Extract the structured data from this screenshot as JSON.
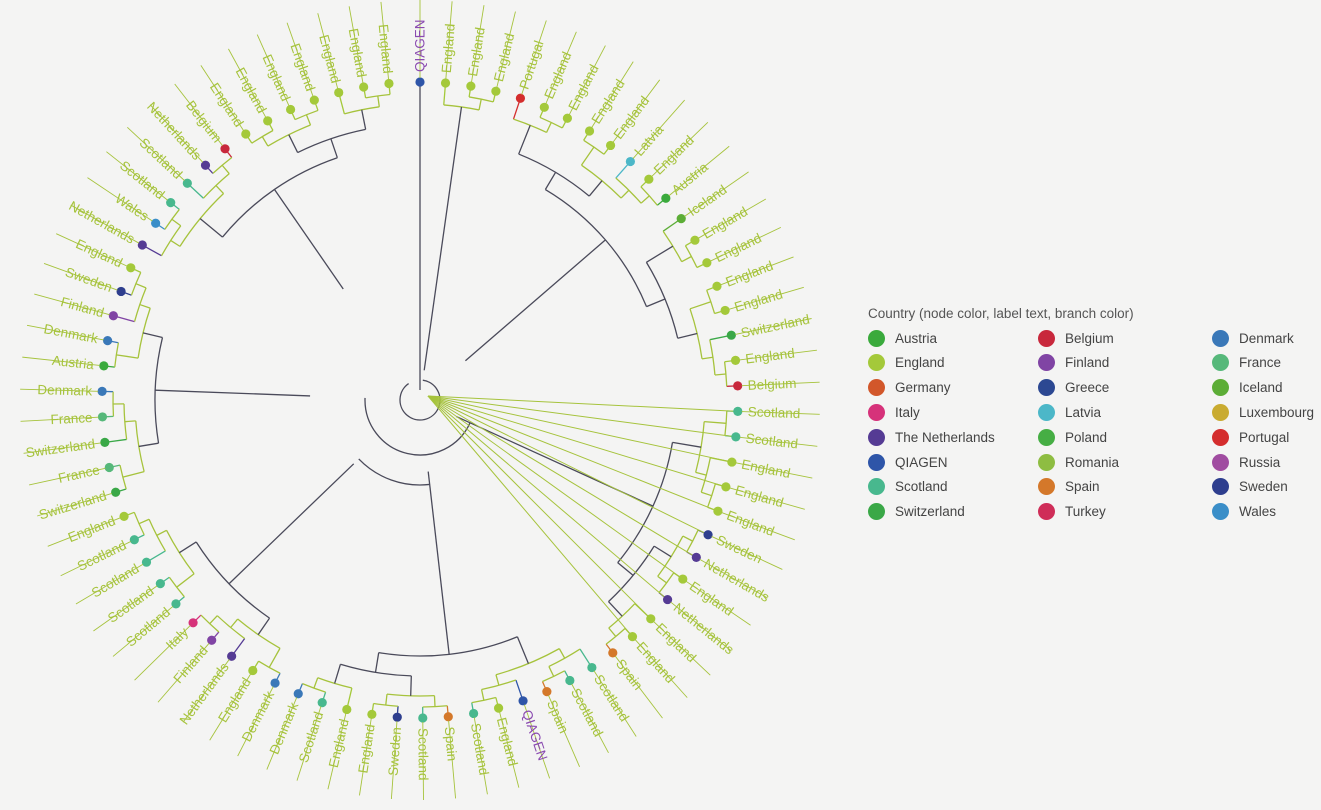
{
  "legend": {
    "title": "Country (node color, label text, branch color)",
    "items": [
      {
        "name": "Austria",
        "color": "#3aaa3c"
      },
      {
        "name": "England",
        "color": "#a4c93a"
      },
      {
        "name": "Germany",
        "color": "#d2572a"
      },
      {
        "name": "Italy",
        "color": "#d6327a"
      },
      {
        "name": "The Netherlands",
        "color": "#553b94"
      },
      {
        "name": "QIAGEN",
        "color": "#2e55a8"
      },
      {
        "name": "Scotland",
        "color": "#48b88e"
      },
      {
        "name": "Switzerland",
        "color": "#3aa847"
      },
      {
        "name": "Belgium",
        "color": "#c8283c"
      },
      {
        "name": "Finland",
        "color": "#8044a4"
      },
      {
        "name": "Greece",
        "color": "#2c4892"
      },
      {
        "name": "Latvia",
        "color": "#4cb7c8"
      },
      {
        "name": "Poland",
        "color": "#46ae44"
      },
      {
        "name": "Romania",
        "color": "#8ebd42"
      },
      {
        "name": "Spain",
        "color": "#d4782a"
      },
      {
        "name": "Turkey",
        "color": "#cf2d58"
      },
      {
        "name": "Denmark",
        "color": "#3a78b8"
      },
      {
        "name": "France",
        "color": "#56b87a"
      },
      {
        "name": "Iceland",
        "color": "#5cad36"
      },
      {
        "name": "Luxembourg",
        "color": "#c9ab30"
      },
      {
        "name": "Portugal",
        "color": "#d42d2d"
      },
      {
        "name": "Russia",
        "color": "#a04ca0"
      },
      {
        "name": "Sweden",
        "color": "#2e3e8e"
      },
      {
        "name": "Wales",
        "color": "#3a8ec8"
      }
    ]
  },
  "tree": {
    "leaves": [
      {
        "label": "QIAGEN",
        "country": "QIAGEN"
      },
      {
        "label": "England",
        "country": "England"
      },
      {
        "label": "England",
        "country": "England"
      },
      {
        "label": "England",
        "country": "England"
      },
      {
        "label": "Portugal",
        "country": "Portugal"
      },
      {
        "label": "England",
        "country": "England"
      },
      {
        "label": "England",
        "country": "England"
      },
      {
        "label": "England",
        "country": "England"
      },
      {
        "label": "England",
        "country": "England"
      },
      {
        "label": "Latvia",
        "country": "Latvia"
      },
      {
        "label": "England",
        "country": "England"
      },
      {
        "label": "Austria",
        "country": "Austria"
      },
      {
        "label": "Iceland",
        "country": "Iceland"
      },
      {
        "label": "England",
        "country": "England"
      },
      {
        "label": "England",
        "country": "England"
      },
      {
        "label": "England",
        "country": "England"
      },
      {
        "label": "England",
        "country": "England"
      },
      {
        "label": "Switzerland",
        "country": "Switzerland"
      },
      {
        "label": "England",
        "country": "England"
      },
      {
        "label": "Belgium",
        "country": "Belgium"
      },
      {
        "label": "Scotland",
        "country": "Scotland"
      },
      {
        "label": "Scotland",
        "country": "Scotland"
      },
      {
        "label": "England",
        "country": "England"
      },
      {
        "label": "England",
        "country": "England"
      },
      {
        "label": "England",
        "country": "England"
      },
      {
        "label": "Sweden",
        "country": "Sweden"
      },
      {
        "label": "Netherlands",
        "country": "The Netherlands"
      },
      {
        "label": "England",
        "country": "England"
      },
      {
        "label": "Netherlands",
        "country": "The Netherlands"
      },
      {
        "label": "England",
        "country": "England"
      },
      {
        "label": "England",
        "country": "England"
      },
      {
        "label": "Spain",
        "country": "Spain"
      },
      {
        "label": "Scotland",
        "country": "Scotland"
      },
      {
        "label": "Scotland",
        "country": "Scotland"
      },
      {
        "label": "Spain",
        "country": "Spain"
      },
      {
        "label": "QIAGEN",
        "country": "QIAGEN"
      },
      {
        "label": "England",
        "country": "England"
      },
      {
        "label": "Scotland",
        "country": "Scotland"
      },
      {
        "label": "Spain",
        "country": "Spain"
      },
      {
        "label": "Scotland",
        "country": "Scotland"
      },
      {
        "label": "Sweden",
        "country": "Sweden"
      },
      {
        "label": "England",
        "country": "England"
      },
      {
        "label": "England",
        "country": "England"
      },
      {
        "label": "Scotland",
        "country": "Scotland"
      },
      {
        "label": "Denmark",
        "country": "Denmark"
      },
      {
        "label": "Denmark",
        "country": "Denmark"
      },
      {
        "label": "England",
        "country": "England"
      },
      {
        "label": "Netherlands",
        "country": "The Netherlands"
      },
      {
        "label": "Finland",
        "country": "Finland"
      },
      {
        "label": "Italy",
        "country": "Italy"
      },
      {
        "label": "Scotland",
        "country": "Scotland"
      },
      {
        "label": "Scotland",
        "country": "Scotland"
      },
      {
        "label": "Scotland",
        "country": "Scotland"
      },
      {
        "label": "Scotland",
        "country": "Scotland"
      },
      {
        "label": "England",
        "country": "England"
      },
      {
        "label": "Switzerland",
        "country": "Switzerland"
      },
      {
        "label": "France",
        "country": "France"
      },
      {
        "label": "Switzerland",
        "country": "Switzerland"
      },
      {
        "label": "France",
        "country": "France"
      },
      {
        "label": "Denmark",
        "country": "Denmark"
      },
      {
        "label": "Austria",
        "country": "Austria"
      },
      {
        "label": "Denmark",
        "country": "Denmark"
      },
      {
        "label": "Finland",
        "country": "Finland"
      },
      {
        "label": "Sweden",
        "country": "Sweden"
      },
      {
        "label": "England",
        "country": "England"
      },
      {
        "label": "Netherlands",
        "country": "The Netherlands"
      },
      {
        "label": "Wales",
        "country": "Wales"
      },
      {
        "label": "Scotland",
        "country": "Scotland"
      },
      {
        "label": "Scotland",
        "country": "Scotland"
      },
      {
        "label": "Netherlands",
        "country": "The Netherlands"
      },
      {
        "label": "Belgium",
        "country": "Belgium"
      },
      {
        "label": "England",
        "country": "England"
      },
      {
        "label": "England",
        "country": "England"
      },
      {
        "label": "England",
        "country": "England"
      },
      {
        "label": "England",
        "country": "England"
      },
      {
        "label": "England",
        "country": "England"
      },
      {
        "label": "England",
        "country": "England"
      },
      {
        "label": "England",
        "country": "England"
      }
    ]
  }
}
